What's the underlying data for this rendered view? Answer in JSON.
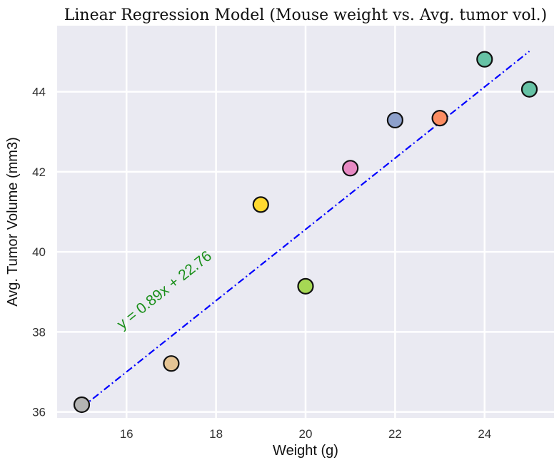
{
  "chart_data": {
    "type": "scatter",
    "title": "Linear Regression Model (Mouse weight vs. Avg. tumor vol.)",
    "xlabel": "Weight (g)",
    "ylabel": "Avg. Tumor Volume (mm3)",
    "xlim": [
      14.45,
      25.55
    ],
    "ylim": [
      35.85,
      45.65
    ],
    "xticks": [
      16,
      18,
      20,
      22,
      24
    ],
    "yticks": [
      36,
      38,
      40,
      42,
      44
    ],
    "grid": true,
    "background": "#eaeaf2",
    "points": [
      {
        "x": 15,
        "y": 36.18,
        "color": "#b3b3b3"
      },
      {
        "x": 17,
        "y": 37.21,
        "color": "#e5c494"
      },
      {
        "x": 19,
        "y": 41.18,
        "color": "#ffd92f"
      },
      {
        "x": 20,
        "y": 39.14,
        "color": "#a6d854"
      },
      {
        "x": 21,
        "y": 42.09,
        "color": "#e78ac3"
      },
      {
        "x": 22,
        "y": 43.29,
        "color": "#8da0cb"
      },
      {
        "x": 23,
        "y": 43.34,
        "color": "#fc8d62"
      },
      {
        "x": 24,
        "y": 44.81,
        "color": "#66c2a5"
      },
      {
        "x": 25,
        "y": 44.06,
        "color": "#66c2a5"
      }
    ],
    "regression": {
      "slope": 0.89,
      "intercept": 22.76,
      "x_range": [
        15,
        25
      ],
      "color": "#0000ff",
      "style": "dash-dot",
      "equation_label": "y = 0.89x + 22.76",
      "label_color": "#1a8f1a"
    }
  }
}
